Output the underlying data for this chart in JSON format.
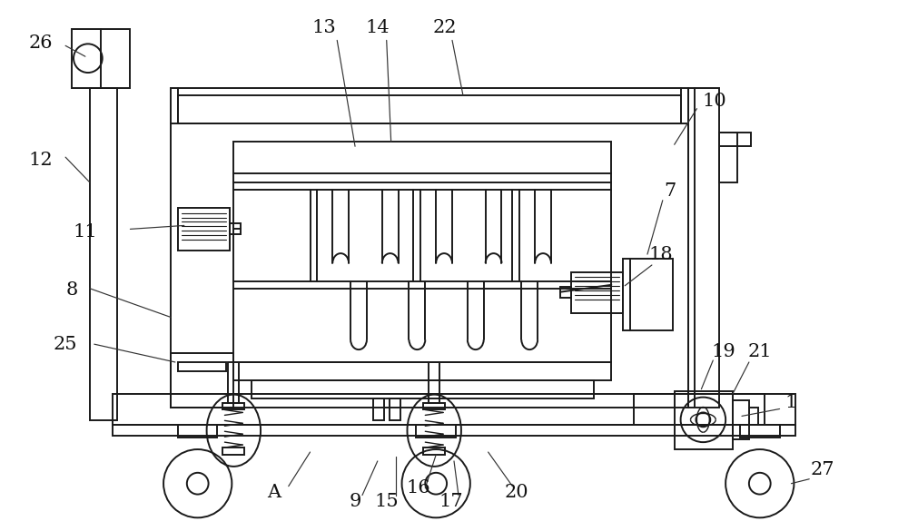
{
  "bg_color": "#ffffff",
  "line_color": "#1a1a1a",
  "lw": 1.4,
  "fig_w": 10.0,
  "fig_h": 5.85
}
